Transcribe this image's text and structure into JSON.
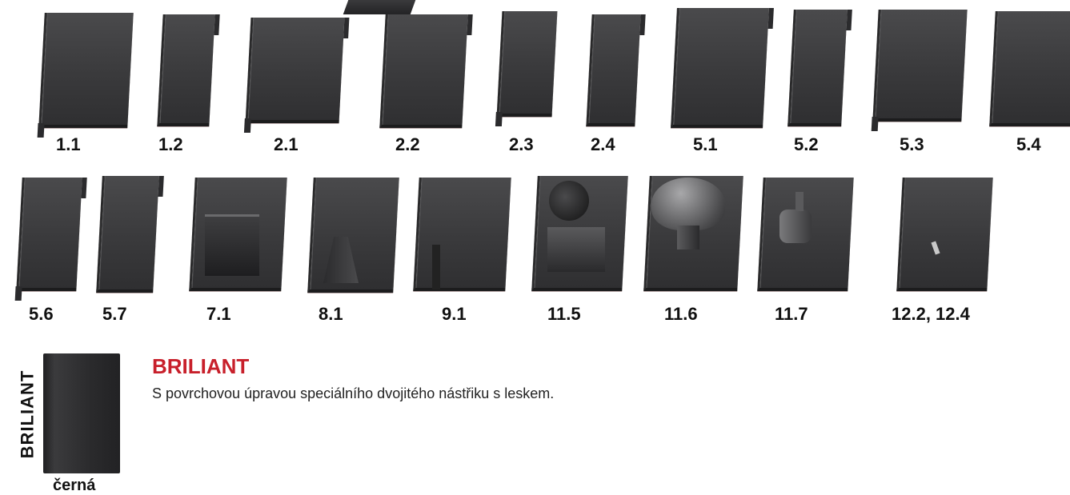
{
  "row1_labels": [
    "1.1",
    "1.2",
    "2.1",
    "2.2",
    "2.3",
    "2.4",
    "5.1",
    "5.2",
    "5.3",
    "5.4"
  ],
  "row2_labels": [
    "5.6",
    "5.7",
    "7.1",
    "8.1",
    "9.1",
    "11.5",
    "11.6",
    "11.7",
    "12.2, 12.4"
  ],
  "legend": {
    "vertical_label": "BRILIANT",
    "swatch_caption": "černá",
    "title": "BRILIANT",
    "description": "S povrchovou úpravou speciálního dvojitého nástřiku s leskem."
  },
  "colors": {
    "tile": "#3a3a3c",
    "accent": "#c8202b"
  }
}
